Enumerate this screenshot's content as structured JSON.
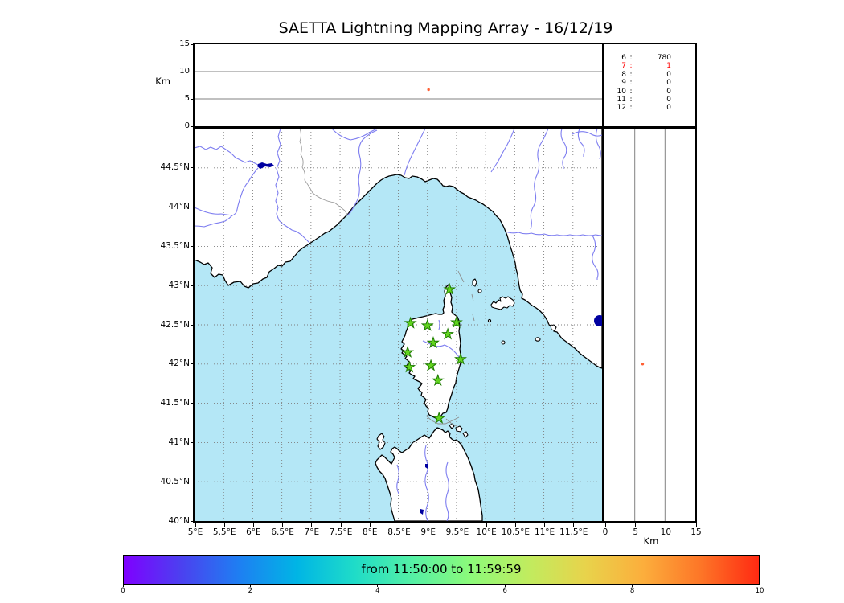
{
  "title": "SAETTA Lightning Mapping Array - 16/12/19",
  "top_panel": {
    "ylabel": "Km",
    "yticks": [
      "15",
      "10",
      "5",
      "0"
    ]
  },
  "count_table": {
    "rows": [
      {
        "label": "6",
        "value": "780",
        "color": "#000000"
      },
      {
        "label": "7",
        "value": "1",
        "color": "#ff0000"
      },
      {
        "label": "8",
        "value": "0",
        "color": "#000000"
      },
      {
        "label": "9",
        "value": "0",
        "color": "#000000"
      },
      {
        "label": "10",
        "value": "0",
        "color": "#000000"
      },
      {
        "label": "11",
        "value": "0",
        "color": "#000000"
      },
      {
        "label": "12",
        "value": "0",
        "color": "#000000"
      }
    ]
  },
  "map": {
    "lat_ticks": [
      "40°N",
      "40.5°N",
      "41°N",
      "41.5°N",
      "42°N",
      "42.5°N",
      "43°N",
      "43.5°N",
      "44°N",
      "44.5°N"
    ],
    "lon_ticks": [
      "5°E",
      "5.5°E",
      "6°E",
      "6.5°E",
      "7°E",
      "7.5°E",
      "8°E",
      "8.5°E",
      "9°E",
      "9.5°E",
      "10°E",
      "10.5°E",
      "11°E",
      "11.5°E"
    ],
    "sea_color": "#b4e7f6",
    "land_color": "#ffffff",
    "river_color": "#7d7df0",
    "lake_color": "#0000a0",
    "station_color": "#62d41f",
    "station_edge_color": "#1d7a00"
  },
  "right_panel": {
    "xlabel": "Km",
    "xticks": [
      "0",
      "5",
      "10",
      "15"
    ]
  },
  "colorbar": {
    "label": "from 11:50:00 to 11:59:59",
    "ticks": [
      "0",
      "2",
      "4",
      "6",
      "8",
      "10"
    ],
    "colors": [
      "#7f00ff",
      "#4b41f0",
      "#1e7ff2",
      "#00b5e5",
      "#1fdcc8",
      "#55f0a5",
      "#8cfa7a",
      "#c0ec5f",
      "#e8d34b",
      "#fcae3c",
      "#fd7527",
      "#ff2a12"
    ]
  },
  "chart_data": {
    "type": "scatter",
    "title": "SAETTA Lightning Mapping Array - 16/12/19",
    "date": "16/12/19",
    "time_window": {
      "from": "11:50:00",
      "to": "11:59:59"
    },
    "colorbar": {
      "label": "from 11:50:00 to 11:59:59",
      "range": [
        0,
        10
      ],
      "ticks": [
        0,
        2,
        4,
        6,
        8,
        10
      ],
      "colormap": "rainbow",
      "legend_position": "bottom"
    },
    "altitude_panel": {
      "ylabel": "Km",
      "ylim": [
        0,
        15
      ],
      "yticks": [
        0,
        5,
        10,
        15
      ],
      "grid": "horizontal at 5 and 10"
    },
    "map_panel": {
      "lon_range": [
        5,
        12
      ],
      "lat_range": [
        40,
        45
      ],
      "grid": "0.5 degree dashed"
    },
    "altitude_lat_panel": {
      "xlabel": "Km",
      "xlim": [
        0,
        15
      ],
      "xticks": [
        0,
        5,
        10,
        15
      ],
      "grid": "vertical at 5 and 10"
    },
    "stations_lma": [
      {
        "lon": 9.38,
        "lat": 42.95
      },
      {
        "lon": 8.71,
        "lat": 42.52
      },
      {
        "lon": 9.0,
        "lat": 42.49
      },
      {
        "lon": 9.5,
        "lat": 42.53
      },
      {
        "lon": 9.35,
        "lat": 42.38
      },
      {
        "lon": 9.1,
        "lat": 42.27
      },
      {
        "lon": 8.66,
        "lat": 42.15
      },
      {
        "lon": 9.57,
        "lat": 42.06
      },
      {
        "lon": 9.06,
        "lat": 41.98
      },
      {
        "lon": 8.69,
        "lat": 41.96
      },
      {
        "lon": 9.18,
        "lat": 41.79
      },
      {
        "lon": 9.2,
        "lat": 41.31
      }
    ],
    "sources": [
      {
        "lon": 9.02,
        "lat": 42.0,
        "alt_km": 6.7,
        "color": "#ff5f33"
      }
    ],
    "count_table": [
      {
        "label": "6",
        "count": 780
      },
      {
        "label": "7",
        "count": 1
      },
      {
        "label": "8",
        "count": 0
      },
      {
        "label": "9",
        "count": 0
      },
      {
        "label": "10",
        "count": 0
      },
      {
        "label": "11",
        "count": 0
      },
      {
        "label": "12",
        "count": 0
      }
    ]
  }
}
